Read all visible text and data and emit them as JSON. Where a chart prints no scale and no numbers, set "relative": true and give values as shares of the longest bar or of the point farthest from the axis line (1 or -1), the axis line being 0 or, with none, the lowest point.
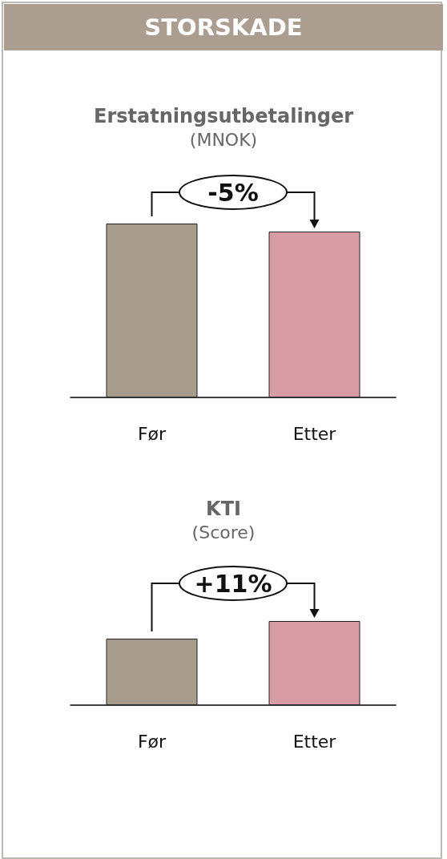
{
  "chart_data": [
    {
      "type": "other",
      "title": "STORSKADE"
    },
    {
      "type": "bar",
      "title": "Erstatningsutbetalinger",
      "subtitle": "(MNOK)",
      "categories": [
        "Før",
        "Etter"
      ],
      "relative": true,
      "values": [
        1,
        0.954
      ],
      "colors": [
        "#a89c8f",
        "#d89ca4"
      ],
      "annotations": [
        "-5%"
      ]
    },
    {
      "type": "bar",
      "title": "KTI",
      "subtitle": "(Score)",
      "categories": [
        "Før",
        "Etter"
      ],
      "relative": true,
      "values": [
        0.79,
        1
      ],
      "colors": [
        "#a89c8f",
        "#d89ca4"
      ],
      "annotations": [
        "+11%"
      ]
    }
  ]
}
